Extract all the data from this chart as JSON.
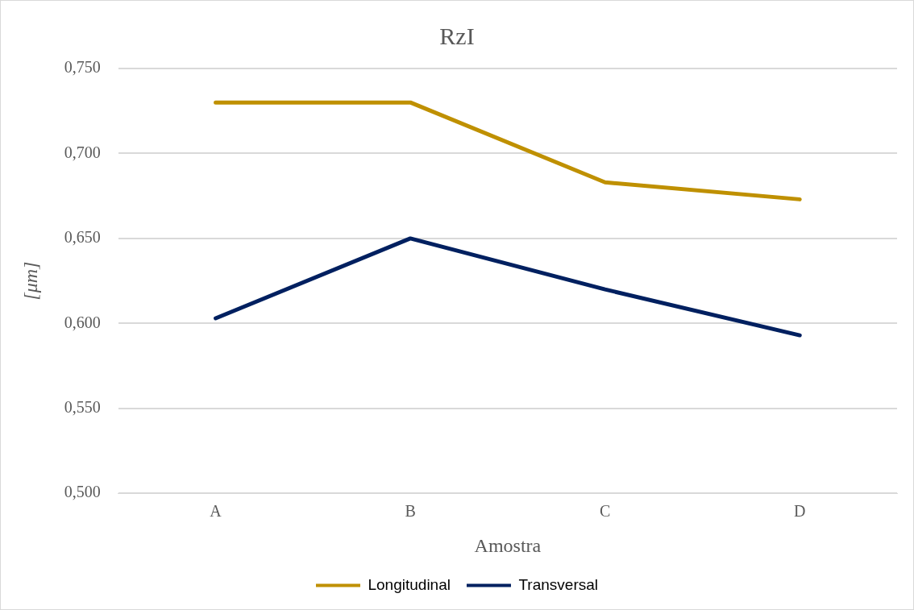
{
  "chart_data": {
    "type": "line",
    "title": "RzI",
    "xlabel": "Amostra",
    "ylabel": "[μm]",
    "categories": [
      "A",
      "B",
      "C",
      "D"
    ],
    "series": [
      {
        "name": "Longitudinal",
        "color": "#bf9000",
        "values": [
          0.73,
          0.73,
          0.683,
          0.673
        ]
      },
      {
        "name": "Transversal",
        "color": "#002060",
        "values": [
          0.603,
          0.65,
          0.62,
          0.593
        ]
      }
    ],
    "ylim": [
      0.5,
      0.75
    ],
    "yticks": [
      {
        "value": 0.5,
        "label": "0,500"
      },
      {
        "value": 0.55,
        "label": "0,550"
      },
      {
        "value": 0.6,
        "label": "0,600"
      },
      {
        "value": 0.65,
        "label": "0,650"
      },
      {
        "value": 0.7,
        "label": "0,700"
      },
      {
        "value": 0.75,
        "label": "0,750"
      }
    ],
    "grid": "y",
    "legend": "bottom",
    "marker": "none",
    "line_style": "solid"
  }
}
